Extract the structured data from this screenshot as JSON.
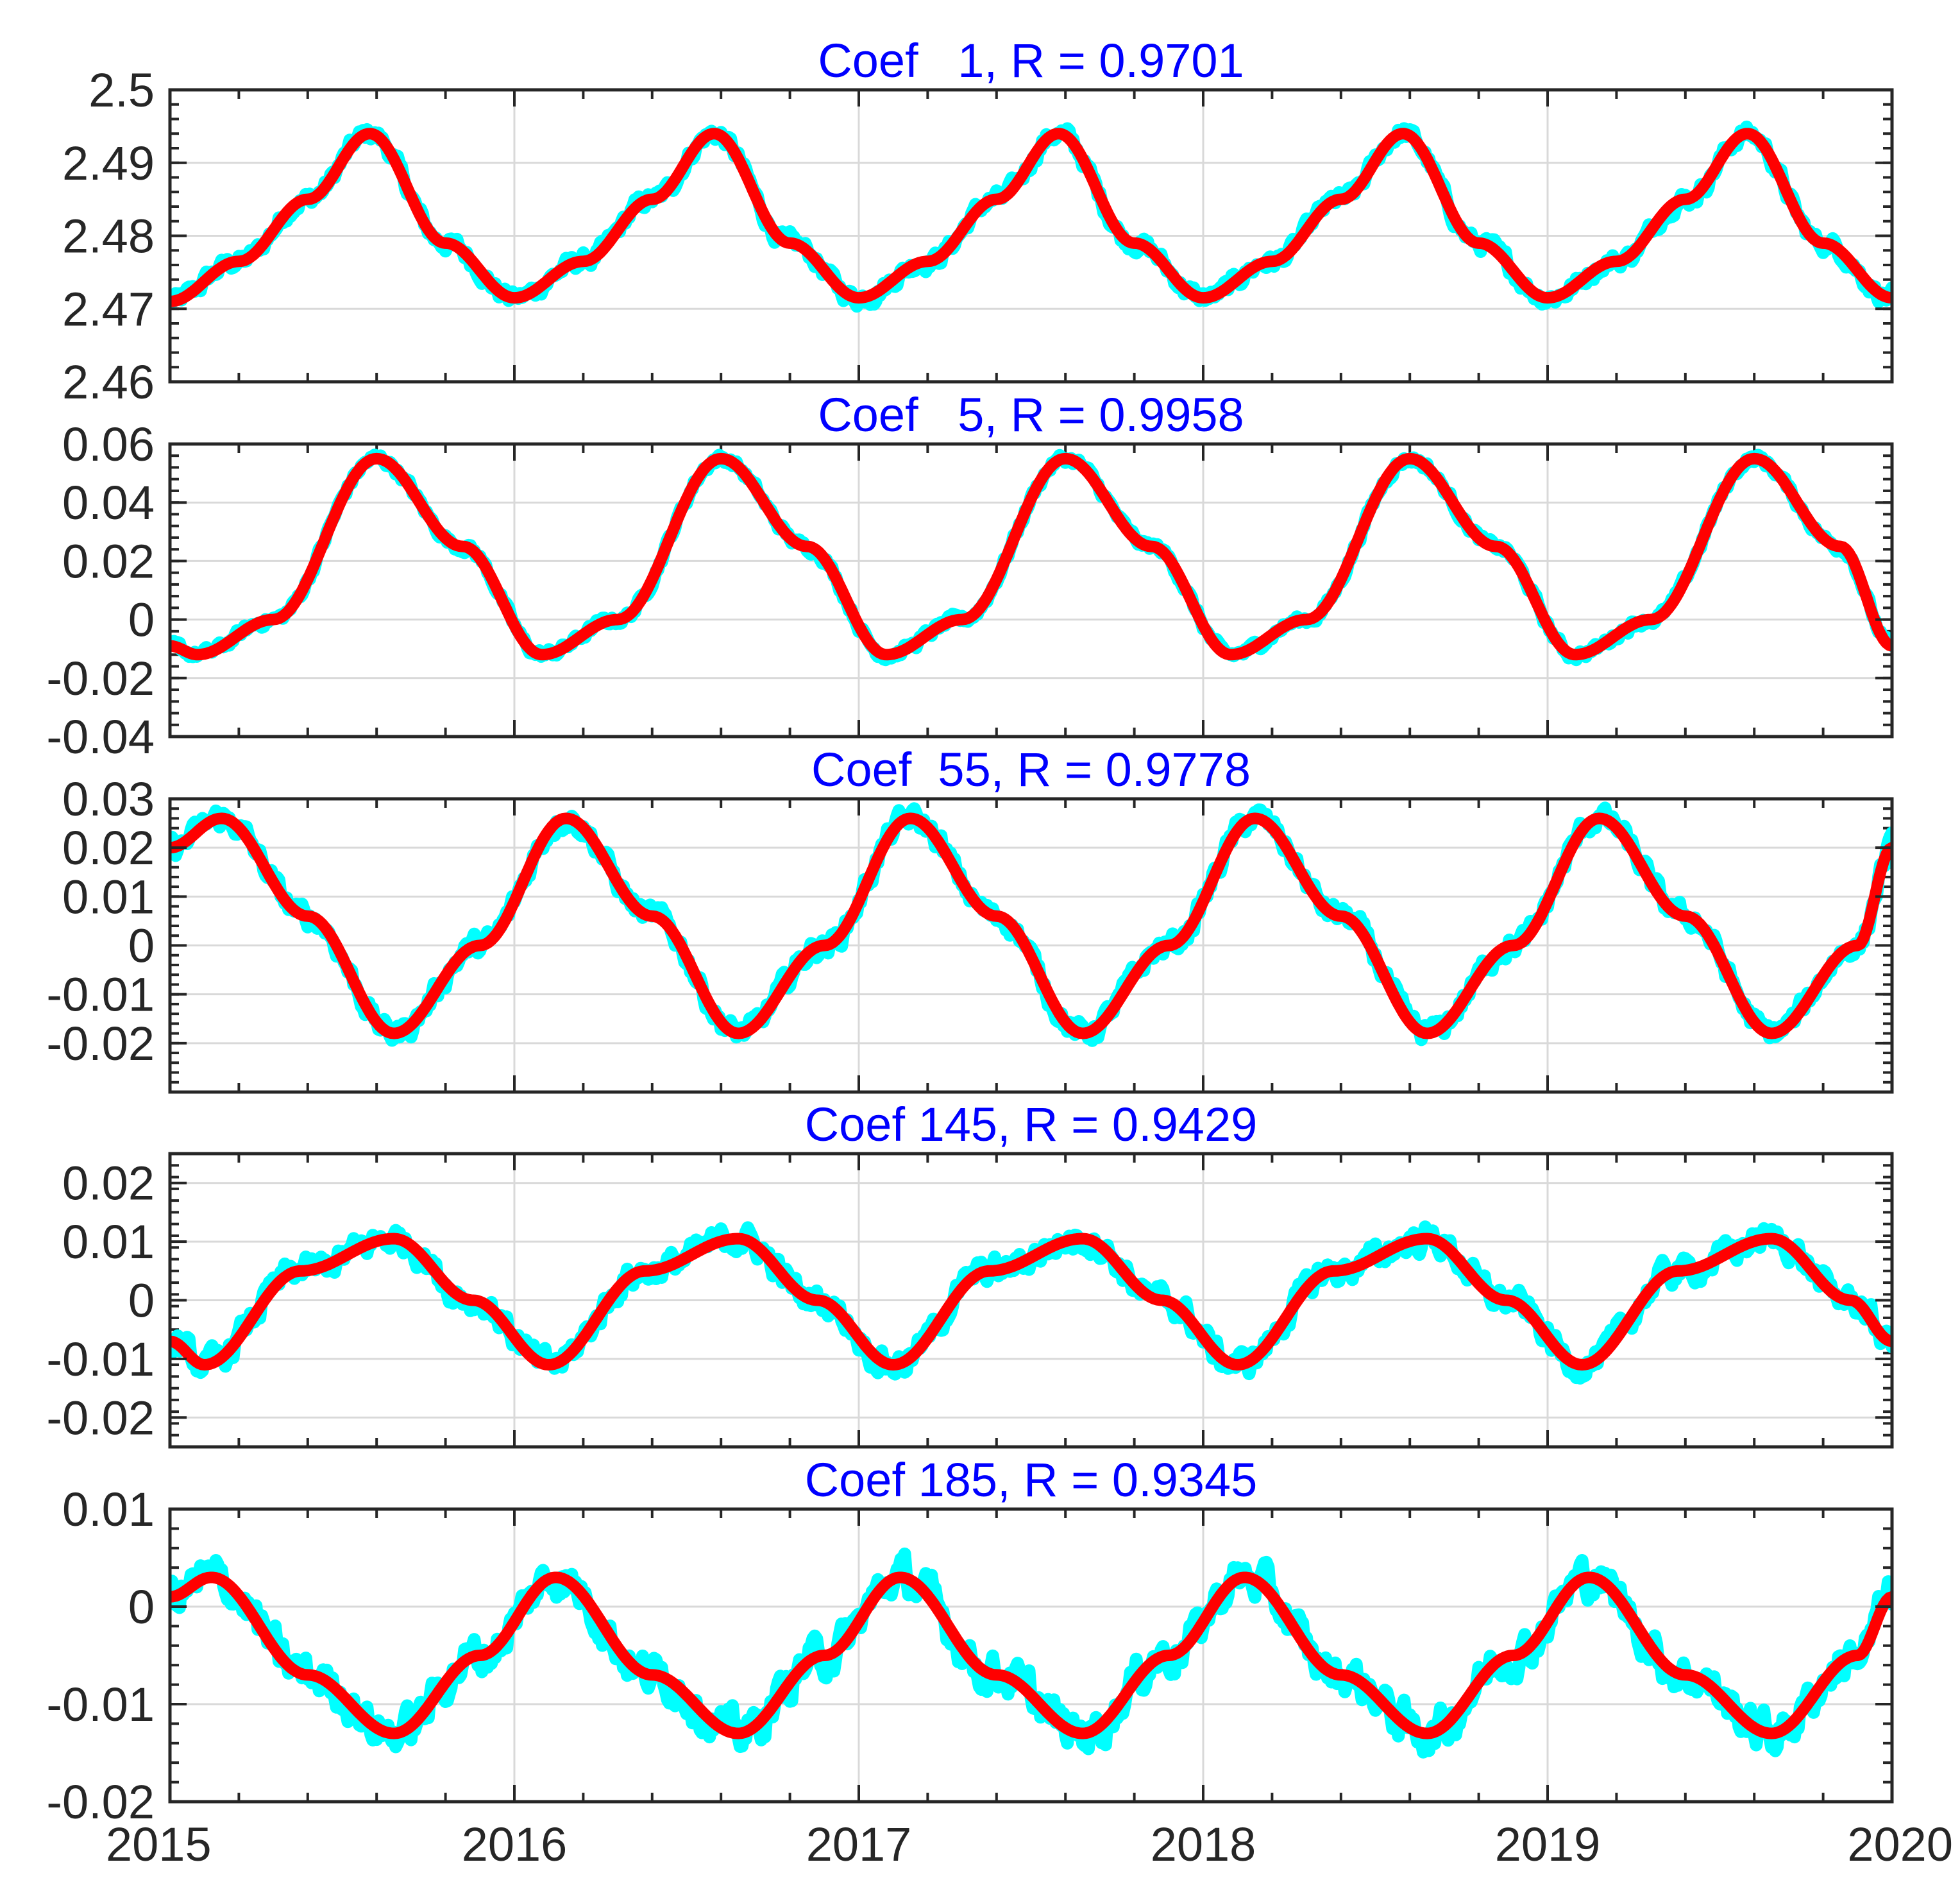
{
  "colors": {
    "observed": "#00ffff",
    "model": "#ff0000",
    "title": "#0000ff",
    "axis": "#262626",
    "grid": "#d9d9d9"
  },
  "chart_data": [
    {
      "type": "line",
      "title": "Coef   1, R = 0.9701",
      "ylim": [
        2.46,
        2.5
      ],
      "yticks": [
        "2.46",
        "2.47",
        "2.48",
        "2.49",
        "2.5"
      ],
      "ytick_values": [
        2.46,
        2.47,
        2.48,
        2.49,
        2.5
      ],
      "xlim": [
        2015,
        2020
      ],
      "xticks": [
        "2015",
        "2016",
        "2017",
        "2018",
        "2019",
        "2020"
      ],
      "xtick_values": [
        2015,
        2016,
        2017,
        2018,
        2019,
        2020
      ],
      "show_xticklabels": false,
      "grid": true,
      "series": [
        {
          "name": "observed",
          "color": "#00ffff",
          "noise_amplitude": 0.0013
        },
        {
          "name": "fit",
          "color": "#ff0000",
          "x": [
            2015.0,
            2015.2,
            2015.4,
            2015.58,
            2015.8,
            2016.0,
            2016.2,
            2016.4,
            2016.58,
            2016.8,
            2017.0,
            2017.2,
            2017.4,
            2017.58,
            2017.8,
            2018.0,
            2018.2,
            2018.4,
            2018.58,
            2018.8,
            2019.0,
            2019.2,
            2019.4,
            2019.58,
            2019.8,
            2020.0
          ],
          "values": [
            2.471,
            2.4765,
            2.485,
            2.494,
            2.479,
            2.4715,
            2.4765,
            2.485,
            2.494,
            2.479,
            2.4715,
            2.4765,
            2.485,
            2.494,
            2.479,
            2.4715,
            2.4765,
            2.485,
            2.494,
            2.479,
            2.4715,
            2.4765,
            2.485,
            2.494,
            2.479,
            2.4715
          ]
        }
      ]
    },
    {
      "type": "line",
      "title": "Coef   5, R = 0.9958",
      "ylim": [
        -0.04,
        0.06
      ],
      "yticks": [
        "-0.04",
        "-0.02",
        "0",
        "0.02",
        "0.04",
        "0.06"
      ],
      "ytick_values": [
        -0.04,
        -0.02,
        0,
        0.02,
        0.04,
        0.06
      ],
      "xlim": [
        2015,
        2020
      ],
      "xticks": [
        "2015",
        "2016",
        "2017",
        "2018",
        "2019",
        "2020"
      ],
      "xtick_values": [
        2015,
        2016,
        2017,
        2018,
        2019,
        2020
      ],
      "show_xticklabels": false,
      "grid": true,
      "series": [
        {
          "name": "observed",
          "color": "#00ffff",
          "noise_amplitude": 0.002
        },
        {
          "name": "fit",
          "color": "#ff0000",
          "x": [
            2015.0,
            2015.08,
            2015.3,
            2015.6,
            2015.85,
            2016.08,
            2016.3,
            2016.6,
            2016.85,
            2017.08,
            2017.3,
            2017.6,
            2017.85,
            2018.08,
            2018.3,
            2018.6,
            2018.85,
            2019.08,
            2019.3,
            2019.6,
            2019.85,
            2020.0
          ],
          "values": [
            -0.009,
            -0.012,
            0.0,
            0.055,
            0.025,
            -0.012,
            0.0,
            0.055,
            0.025,
            -0.012,
            0.0,
            0.055,
            0.025,
            -0.012,
            0.0,
            0.055,
            0.025,
            -0.012,
            0.0,
            0.055,
            0.025,
            -0.009
          ]
        }
      ]
    },
    {
      "type": "line",
      "title": "Coef  55, R = 0.9778",
      "ylim": [
        -0.03,
        0.03
      ],
      "yticks": [
        "-0.02",
        "-0.01",
        "0",
        "0.01",
        "0.02",
        "0.03"
      ],
      "ytick_values": [
        -0.02,
        -0.01,
        0,
        0.01,
        0.02,
        0.03
      ],
      "xlim": [
        2015,
        2020
      ],
      "xticks": [
        "2015",
        "2016",
        "2017",
        "2018",
        "2019",
        "2020"
      ],
      "xtick_values": [
        2015,
        2016,
        2017,
        2018,
        2019,
        2020
      ],
      "show_xticklabels": false,
      "grid": true,
      "series": [
        {
          "name": "observed",
          "color": "#00ffff",
          "noise_amplitude": 0.0025
        },
        {
          "name": "fit",
          "color": "#ff0000",
          "x": [
            2015.0,
            2015.15,
            2015.4,
            2015.65,
            2015.9,
            2016.15,
            2016.4,
            2016.65,
            2016.9,
            2017.15,
            2017.4,
            2017.65,
            2017.9,
            2018.15,
            2018.4,
            2018.65,
            2018.9,
            2019.15,
            2019.4,
            2019.65,
            2019.9,
            2020.0
          ],
          "values": [
            0.02,
            0.026,
            0.006,
            -0.018,
            0.0,
            0.026,
            0.006,
            -0.018,
            0.0,
            0.026,
            0.006,
            -0.018,
            0.0,
            0.026,
            0.006,
            -0.018,
            0.0,
            0.026,
            0.006,
            -0.018,
            0.0,
            0.02
          ]
        }
      ]
    },
    {
      "type": "line",
      "title": "Coef 145, R = 0.9429",
      "ylim": [
        -0.025,
        0.025
      ],
      "yticks": [
        "-0.02",
        "-0.01",
        "0",
        "0.01",
        "0.02"
      ],
      "ytick_values": [
        -0.02,
        -0.01,
        0,
        0.01,
        0.02
      ],
      "xlim": [
        2015,
        2020
      ],
      "xticks": [
        "2015",
        "2016",
        "2017",
        "2018",
        "2019",
        "2020"
      ],
      "xtick_values": [
        2015,
        2016,
        2017,
        2018,
        2019,
        2020
      ],
      "show_xticklabels": false,
      "grid": true,
      "series": [
        {
          "name": "observed",
          "color": "#00ffff",
          "noise_amplitude": 0.0025
        },
        {
          "name": "fit",
          "color": "#ff0000",
          "x": [
            2015.0,
            2015.1,
            2015.38,
            2015.65,
            2015.88,
            2016.1,
            2016.38,
            2016.65,
            2016.88,
            2017.1,
            2017.38,
            2017.65,
            2017.88,
            2018.1,
            2018.38,
            2018.65,
            2018.88,
            2019.1,
            2019.38,
            2019.65,
            2019.88,
            2020.0
          ],
          "values": [
            -0.007,
            -0.011,
            0.005,
            0.0105,
            0.0,
            -0.011,
            0.005,
            0.0105,
            0.0,
            -0.011,
            0.005,
            0.0105,
            0.0,
            -0.011,
            0.005,
            0.0105,
            0.0,
            -0.011,
            0.005,
            0.0105,
            0.0,
            -0.007
          ]
        }
      ]
    },
    {
      "type": "line",
      "title": "Coef 185, R = 0.9345",
      "ylim": [
        -0.02,
        0.01
      ],
      "yticks": [
        "-0.02",
        "-0.01",
        "0",
        "0.01"
      ],
      "ytick_values": [
        -0.02,
        -0.01,
        0,
        0.01
      ],
      "xlim": [
        2015,
        2020
      ],
      "xticks": [
        "2015",
        "2016",
        "2017",
        "2018",
        "2019",
        "2020"
      ],
      "xtick_values": [
        2015,
        2016,
        2017,
        2018,
        2019,
        2020
      ],
      "show_xticklabels": true,
      "grid": true,
      "series": [
        {
          "name": "observed",
          "color": "#00ffff",
          "noise_amplitude": 0.0022
        },
        {
          "name": "fit",
          "color": "#ff0000",
          "x": [
            2015.0,
            2015.12,
            2015.4,
            2015.65,
            2015.9,
            2016.12,
            2016.4,
            2016.65,
            2016.9,
            2017.12,
            2017.4,
            2017.65,
            2017.9,
            2018.12,
            2018.4,
            2018.65,
            2018.9,
            2019.12,
            2019.4,
            2019.65,
            2019.9,
            2020.0
          ],
          "values": [
            0.001,
            0.003,
            -0.007,
            -0.013,
            -0.005,
            0.003,
            -0.007,
            -0.013,
            -0.005,
            0.003,
            -0.007,
            -0.013,
            -0.005,
            0.003,
            -0.007,
            -0.013,
            -0.005,
            0.003,
            -0.007,
            -0.013,
            -0.005,
            0.001
          ]
        }
      ]
    }
  ]
}
